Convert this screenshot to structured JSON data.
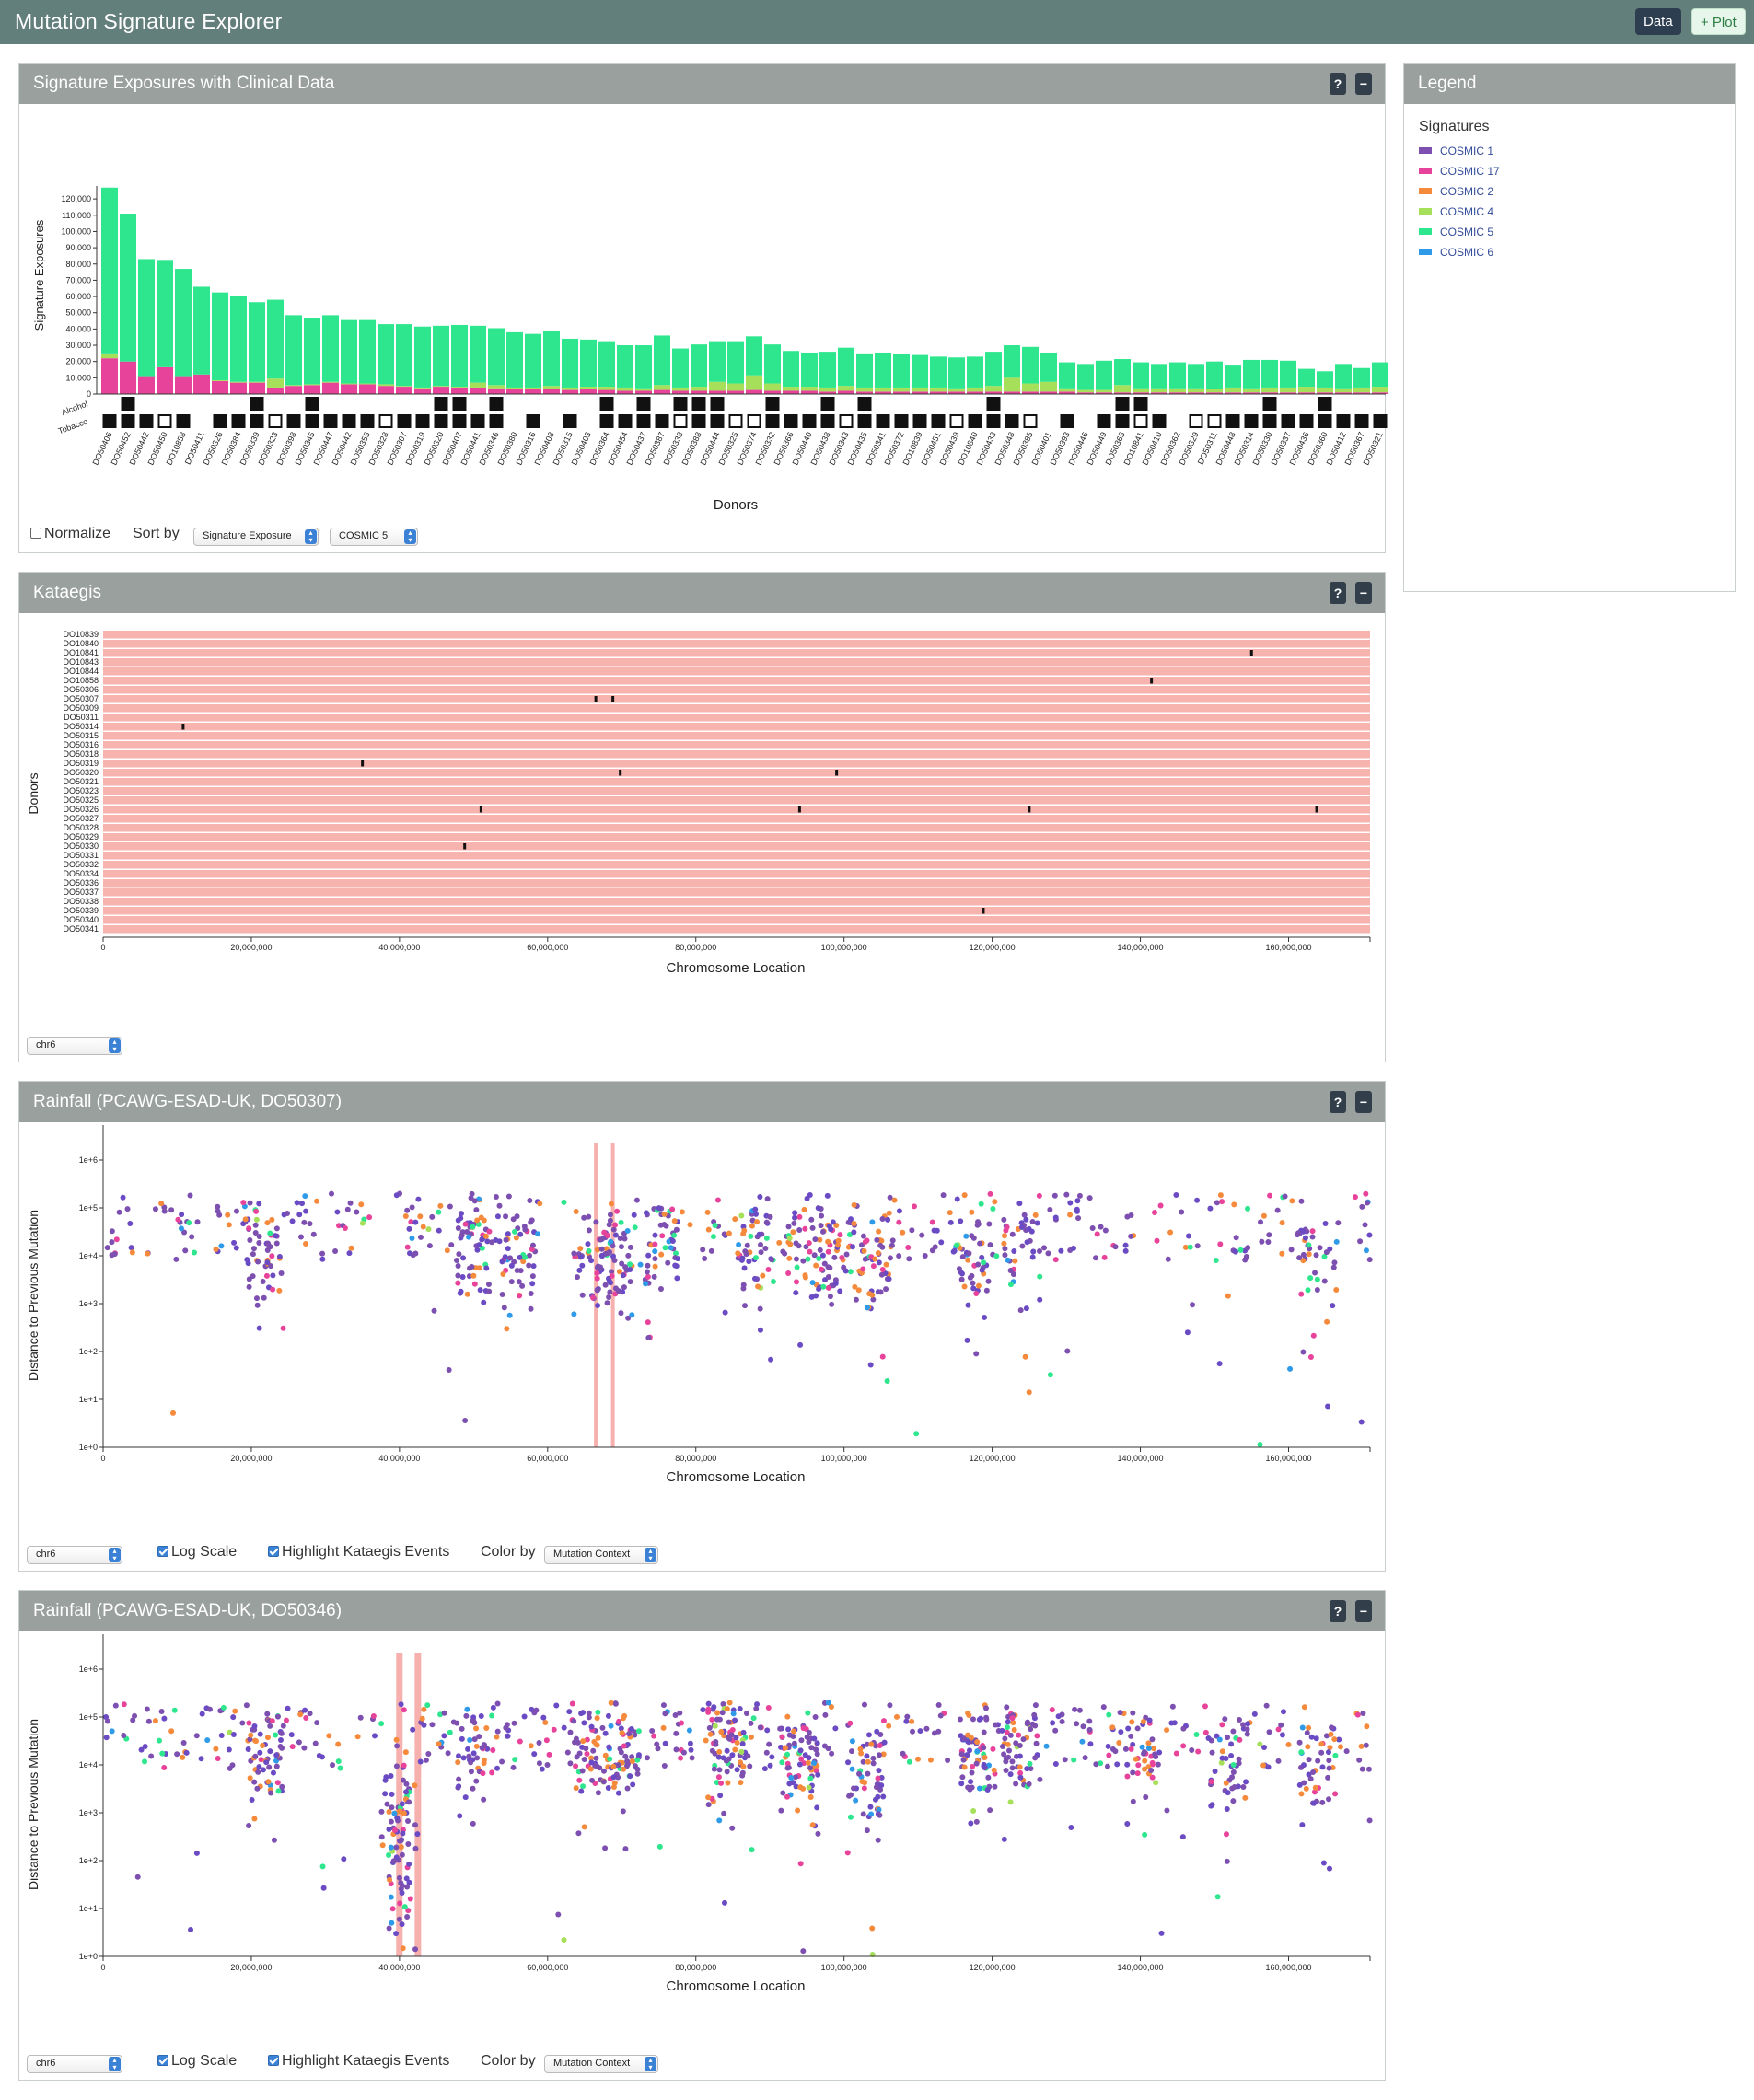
{
  "app": {
    "title": "Mutation Signature Explorer",
    "data_button": "Data",
    "plot_button": "+ Plot"
  },
  "exposures_panel": {
    "title": "Signature Exposures with Clinical Data",
    "help": "?",
    "minimize": "−",
    "ylabel": "Signature Exposures",
    "xlabel": "Donors",
    "clinical_rows": [
      "Alcohol",
      "Tobacco"
    ],
    "normalize_label": "Normalize",
    "normalize_checked": false,
    "sort_label": "Sort by",
    "sort_value": "Signature Exposure",
    "sort_signature": "COSMIC 5"
  },
  "legend_panel": {
    "title": "Legend",
    "section": "Signatures",
    "items": [
      {
        "name": "COSMIC 1",
        "color": "#7c4fb0"
      },
      {
        "name": "COSMIC 17",
        "color": "#e8439a"
      },
      {
        "name": "COSMIC 2",
        "color": "#f58a3c"
      },
      {
        "name": "COSMIC 4",
        "color": "#a6e05a"
      },
      {
        "name": "COSMIC 5",
        "color": "#2ee68d"
      },
      {
        "name": "COSMIC 6",
        "color": "#2f9be8"
      }
    ]
  },
  "kataegis_panel": {
    "title": "Kataegis",
    "help": "?",
    "minimize": "−",
    "ylabel": "Donors",
    "xlabel": "Chromosome Location",
    "chromosome": "chr6",
    "donors": [
      "DO10839",
      "DO10840",
      "DO10841",
      "DO10843",
      "DO10844",
      "DO10858",
      "DO50306",
      "DO50307",
      "DO50309",
      "DO50311",
      "DO50314",
      "DO50315",
      "DO50316",
      "DO50318",
      "DO50319",
      "DO50320",
      "DO50321",
      "DO50323",
      "DO50325",
      "DO50326",
      "DO50327",
      "DO50328",
      "DO50329",
      "DO50330",
      "DO50331",
      "DO50332",
      "DO50334",
      "DO50336",
      "DO50337",
      "DO50338",
      "DO50339",
      "DO50340",
      "DO50341"
    ],
    "events": [
      {
        "donor": "DO10841",
        "pos": 155000000
      },
      {
        "donor": "DO10858",
        "pos": 141500000
      },
      {
        "donor": "DO50307",
        "pos": 66500000
      },
      {
        "donor": "DO50307",
        "pos": 68800000
      },
      {
        "donor": "DO50314",
        "pos": 10800000
      },
      {
        "donor": "DO50319",
        "pos": 35000000
      },
      {
        "donor": "DO50320",
        "pos": 69800000
      },
      {
        "donor": "DO50320",
        "pos": 99000000
      },
      {
        "donor": "DO50326",
        "pos": 51000000
      },
      {
        "donor": "DO50326",
        "pos": 94000000
      },
      {
        "donor": "DO50326",
        "pos": 125000000
      },
      {
        "donor": "DO50326",
        "pos": 163800000
      },
      {
        "donor": "DO50330",
        "pos": 48800000
      },
      {
        "donor": "DO50339",
        "pos": 118800000
      }
    ],
    "x_ticks": [
      "0",
      "20,000,000",
      "40,000,000",
      "60,000,000",
      "80,000,000",
      "100,000,000",
      "120,000,000",
      "140,000,000",
      "160,000,000"
    ]
  },
  "rainfall_panels": [
    {
      "title": "Rainfall (PCAWG-ESAD-UK, DO50307)",
      "help": "?",
      "minimize": "−",
      "ylabel": "Distance to Previous Mutation",
      "xlabel": "Chromosome Location",
      "chromosome": "chr6",
      "log_scale_label": "Log Scale",
      "log_scale": true,
      "highlight_label": "Highlight Kataegis Events",
      "highlight": true,
      "color_by_label": "Color by",
      "color_by": "Mutation Context",
      "kataegis_pos": [
        66500000,
        68800000
      ]
    },
    {
      "title": "Rainfall (PCAWG-ESAD-UK, DO50346)",
      "help": "?",
      "minimize": "−",
      "ylabel": "Distance to Previous Mutation",
      "xlabel": "Chromosome Location",
      "chromosome": "chr6",
      "log_scale_label": "Log Scale",
      "log_scale": true,
      "highlight_label": "Highlight Kataegis Events",
      "highlight": true,
      "color_by_label": "Color by",
      "color_by": "Mutation Context",
      "kataegis_pos": [
        39800000,
        42300000
      ]
    }
  ],
  "chart_data": [
    {
      "type": "bar",
      "title": "Signature Exposures with Clinical Data",
      "xlabel": "Donors",
      "ylabel": "Signature Exposures",
      "ylim": [
        0,
        128000
      ],
      "y_ticks": [
        "0",
        "10,000",
        "20,000",
        "30,000",
        "40,000",
        "50,000",
        "60,000",
        "70,000",
        "80,000",
        "90,000",
        "100,000",
        "110,000",
        "120,000"
      ],
      "categories": [
        "DO50406",
        "DO50452",
        "DO50442",
        "DO50450",
        "DO10858",
        "DO50411",
        "DO50326",
        "DO50384",
        "DO50339",
        "DO50323",
        "DO50398",
        "DO50345",
        "DO50447",
        "DO50442",
        "DO50355",
        "DO50328",
        "DO50307",
        "DO50319",
        "DO50320",
        "DO50407",
        "DO50441",
        "DO50346",
        "DO50380",
        "DO50316",
        "DO50408",
        "DO50315",
        "DO50403",
        "DO50364",
        "DO50454",
        "DO50437",
        "DO50387",
        "DO50338",
        "DO50388",
        "DO50444",
        "DO50325",
        "DO50374",
        "DO50332",
        "DO50366",
        "DO50440",
        "DO50438",
        "DO50343",
        "DO50435",
        "DO50341",
        "DO50372",
        "DO10839",
        "DO50451",
        "DO50439",
        "DO10840",
        "DO50433",
        "DO50348",
        "DO50385",
        "DO50401",
        "DO50393",
        "DO50446",
        "DO50449",
        "DO50365",
        "DO10841",
        "DO50410",
        "DO50362",
        "DO50329",
        "DO50311",
        "DO50448",
        "DO50314",
        "DO50330",
        "DO50337",
        "DO50436",
        "DO50360",
        "DO50412",
        "DO50367",
        "DO50321"
      ],
      "series": [
        {
          "name": "COSMIC 17",
          "values": [
            22000,
            20000,
            11000,
            16500,
            11000,
            12000,
            8000,
            7000,
            7000,
            4000,
            5000,
            5500,
            7000,
            6000,
            6000,
            5000,
            4500,
            3500,
            4500,
            4000,
            4000,
            3500,
            3000,
            3000,
            3000,
            2500,
            3000,
            2500,
            2000,
            2000,
            2500,
            2000,
            2000,
            2000,
            2000,
            2500,
            2000,
            2000,
            2000,
            1500,
            2000,
            1500,
            1500,
            1500,
            1500,
            1500,
            1500,
            1500,
            1500,
            1500,
            1500,
            1500,
            1500,
            1000,
            1000,
            1000,
            1000,
            1000,
            1000,
            1000,
            1000,
            1000,
            1000,
            1000,
            1000,
            1000,
            1000,
            1000,
            1000,
            1000
          ]
        },
        {
          "name": "COSMIC 4",
          "values": [
            3000,
            0,
            0,
            0,
            0,
            0,
            500,
            500,
            500,
            5500,
            500,
            500,
            500,
            500,
            500,
            1000,
            500,
            500,
            500,
            500,
            3000,
            2000,
            1000,
            1000,
            2000,
            1500,
            1500,
            2000,
            2000,
            1500,
            3000,
            2000,
            2500,
            5500,
            4500,
            9000,
            4500,
            2500,
            2500,
            2500,
            3000,
            2500,
            2500,
            2500,
            2500,
            2500,
            2000,
            2500,
            3500,
            8500,
            5000,
            6000,
            2000,
            1500,
            1500,
            4500,
            2500,
            2500,
            2500,
            2500,
            2000,
            3000,
            2500,
            3000,
            3000,
            3500,
            3000,
            2500,
            3000,
            3500
          ]
        },
        {
          "name": "COSMIC 5",
          "values": [
            102000,
            91000,
            72000,
            66000,
            66000,
            54000,
            54000,
            53000,
            49000,
            48500,
            43000,
            41000,
            41000,
            39000,
            39000,
            37000,
            38000,
            37500,
            37000,
            38000,
            35000,
            35000,
            34000,
            33000,
            34000,
            30000,
            29000,
            28000,
            26000,
            26500,
            30500,
            24000,
            26000,
            25000,
            26000,
            24000,
            24000,
            22000,
            21000,
            22000,
            23500,
            21000,
            21500,
            20500,
            20000,
            19000,
            19000,
            19000,
            21000,
            20000,
            22500,
            18000,
            16000,
            16000,
            18000,
            16000,
            16000,
            15000,
            16000,
            15000,
            17000,
            13500,
            17500,
            17000,
            16500,
            11000,
            10000,
            15000,
            12000,
            15000
          ]
        }
      ],
      "clinical": {
        "Alcohol": [
          0,
          1,
          0,
          0,
          0,
          0,
          0,
          0,
          1,
          0,
          0,
          1,
          0,
          0,
          0,
          0,
          0,
          0,
          1,
          1,
          0,
          1,
          0,
          0,
          0,
          0,
          0,
          1,
          0,
          1,
          0,
          1,
          1,
          1,
          0,
          0,
          1,
          0,
          0,
          1,
          0,
          1,
          0,
          0,
          0,
          0,
          0,
          0,
          1,
          0,
          0,
          0,
          0,
          0,
          0,
          1,
          1,
          0,
          0,
          0,
          0,
          0,
          0,
          1,
          0,
          0,
          1,
          0,
          0,
          0
        ],
        "Tobacco": [
          1,
          1,
          1,
          2,
          1,
          0,
          1,
          1,
          1,
          2,
          1,
          1,
          1,
          1,
          1,
          2,
          1,
          1,
          1,
          1,
          1,
          1,
          0,
          1,
          0,
          1,
          0,
          1,
          1,
          1,
          1,
          2,
          1,
          1,
          2,
          2,
          1,
          1,
          1,
          1,
          2,
          1,
          1,
          1,
          1,
          1,
          2,
          1,
          1,
          1,
          2,
          0,
          1,
          0,
          1,
          1,
          2,
          1,
          0,
          2,
          2,
          1,
          1,
          1,
          1,
          1,
          1,
          1,
          1,
          1
        ]
      }
    },
    {
      "type": "scatter",
      "title": "Rainfall (PCAWG-ESAD-UK, DO50307)",
      "xlabel": "Chromosome Location",
      "ylabel": "Distance to Previous Mutation",
      "xlim": [
        0,
        171000000
      ],
      "yscale": "log",
      "y_ticks": [
        "1e+0",
        "1e+1",
        "1e+2",
        "1e+3",
        "1e+4",
        "1e+5",
        "1e+6"
      ]
    },
    {
      "type": "scatter",
      "title": "Rainfall (PCAWG-ESAD-UK, DO50346)",
      "xlabel": "Chromosome Location",
      "ylabel": "Distance to Previous Mutation",
      "xlim": [
        0,
        171000000
      ],
      "yscale": "log",
      "y_ticks": [
        "1e+0",
        "1e+1",
        "1e+2",
        "1e+3",
        "1e+4",
        "1e+5",
        "1e+6"
      ]
    }
  ],
  "mutation_context_colors": [
    "#7c4fb0",
    "#6a4bc4",
    "#f58a3c",
    "#e8439a",
    "#2ee68d",
    "#2f9be8",
    "#a6e05a"
  ]
}
